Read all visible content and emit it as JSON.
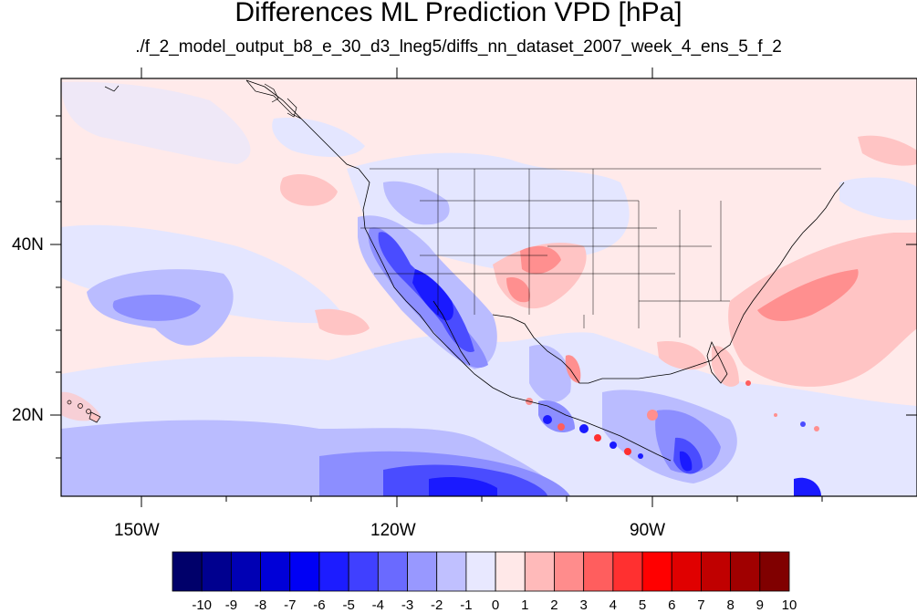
{
  "title": "Differences ML Prediction VPD [hPa]",
  "subtitle": "./f_2_model_output_b8_e_30_d3_lneg5/diffs_nn_dataset_2007_week_4_ens_5_f_2",
  "lon_range": [
    -160,
    -60
  ],
  "lat_range": [
    10,
    59
  ],
  "lon_labels": [
    "150W",
    "120W",
    "90W"
  ],
  "lat_labels": [
    "40N",
    "20N"
  ],
  "colorbar": {
    "labels": [
      "-10",
      "-9",
      "-8",
      "-7",
      "-6",
      "-5",
      "-4",
      "-3",
      "-2",
      "-1",
      "0",
      "1",
      "2",
      "3",
      "4",
      "5",
      "6",
      "7",
      "8",
      "9",
      "10"
    ],
    "colors": [
      "#00006a",
      "#00008f",
      "#0000b4",
      "#0000d8",
      "#0000f5",
      "#1c1cff",
      "#4040ff",
      "#6a6aff",
      "#9898ff",
      "#c0c0ff",
      "#e8e8ff",
      "#ffe8e8",
      "#ffbaba",
      "#ff8c8c",
      "#ff5e5e",
      "#ff3030",
      "#ff0000",
      "#e00000",
      "#c00000",
      "#a00000",
      "#800000"
    ]
  },
  "features": [
    {
      "name": "pacific-blue-band",
      "value": -1.5
    },
    {
      "name": "south-pacific-blue",
      "value": -3
    },
    {
      "name": "southwest-blue",
      "value": -4
    },
    {
      "name": "southern-plains-red",
      "value": 1.5
    },
    {
      "name": "atlantic-red",
      "value": 1.5
    }
  ]
}
